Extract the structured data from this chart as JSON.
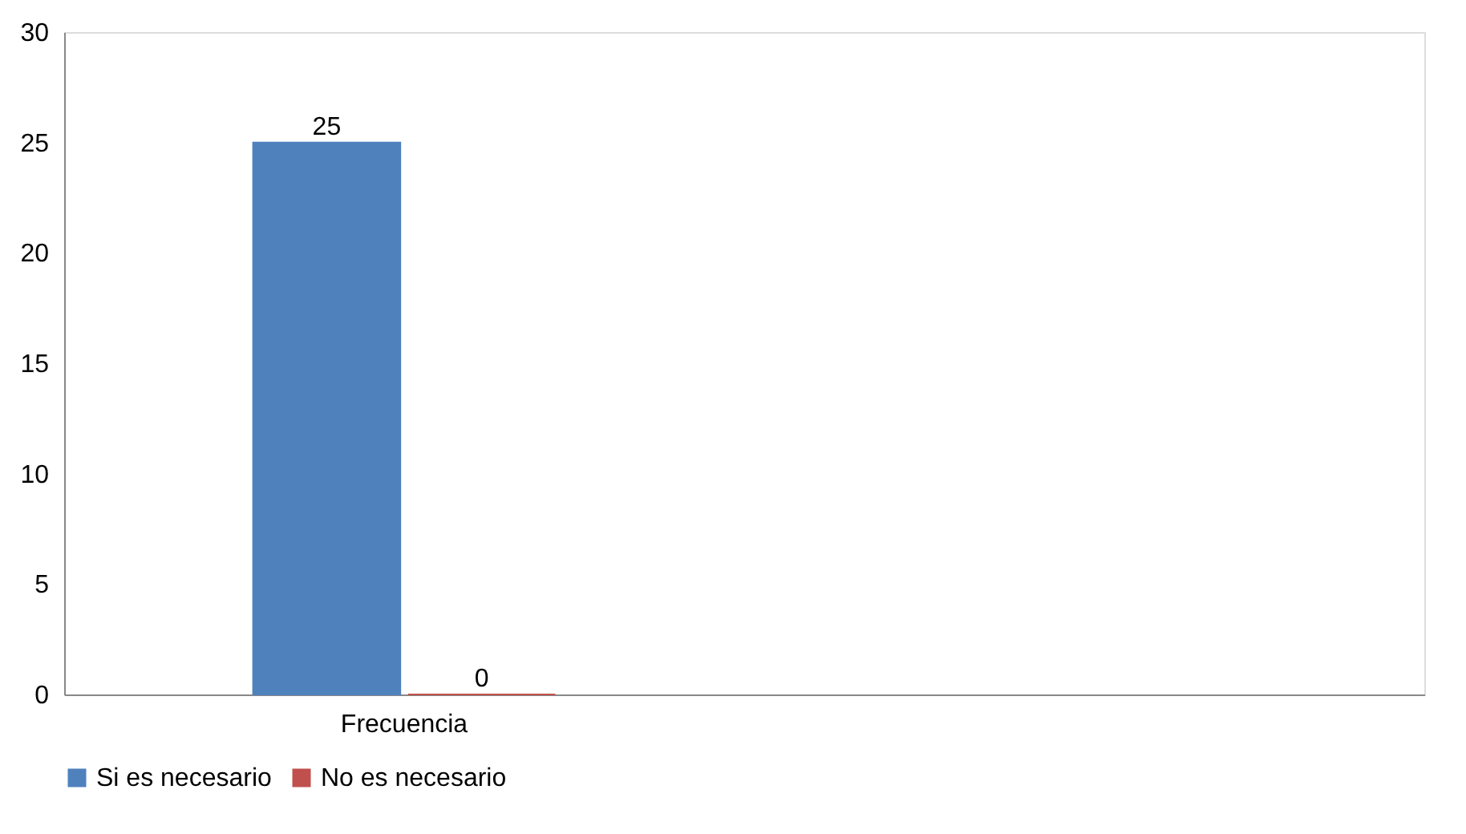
{
  "chart_data": {
    "type": "bar",
    "categories": [
      "Frecuencia",
      null
    ],
    "series": [
      {
        "name": "Si es necesario",
        "color": "#4f81bd",
        "values": [
          25,
          null
        ]
      },
      {
        "name": "No es necesario",
        "color": "#c0504d",
        "values": [
          0,
          null
        ]
      }
    ],
    "ylim": [
      0,
      30
    ],
    "yticks": [
      0,
      5,
      10,
      15,
      20,
      25,
      30
    ],
    "grid": false,
    "legend": "bottom",
    "data_labels": true
  }
}
